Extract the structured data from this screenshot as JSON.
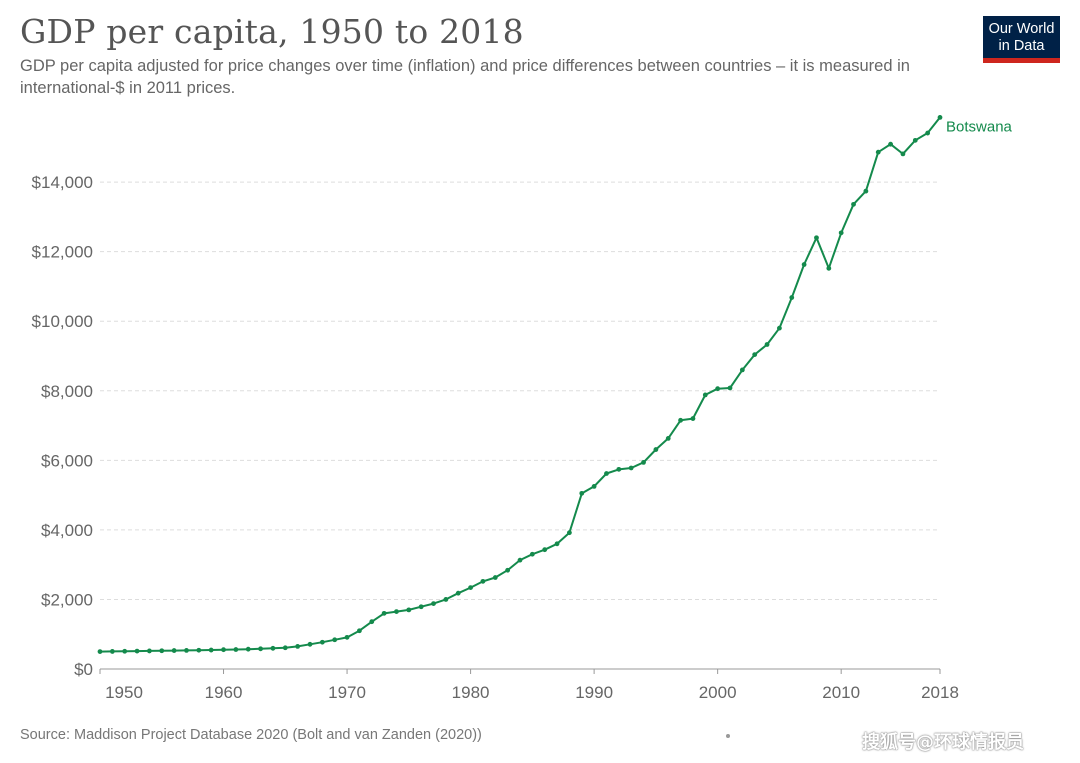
{
  "header": {
    "title": "GDP per capita, 1950 to 2018",
    "subtitle": "GDP per capita adjusted for price changes over time (inflation) and price differences between countries – it is measured in international-$ in 2011 prices."
  },
  "logo": {
    "line1": "Our World",
    "line2": "in Data",
    "bg_color": "#002147",
    "accent_color": "#ce261e"
  },
  "footer": {
    "source": "Source: Maddison Project Database 2020 (Bolt and van Zanden (2020))",
    "watermark": "搜狐号@环球情报员"
  },
  "chart_data": {
    "type": "line",
    "title": "GDP per capita, 1950 to 2018",
    "xlabel": "",
    "ylabel": "",
    "xlim": [
      1950,
      2018
    ],
    "ylim": [
      0,
      15900
    ],
    "grid": true,
    "x_ticks": [
      1950,
      1960,
      1970,
      1980,
      1990,
      2000,
      2010,
      2018
    ],
    "y_ticks": [
      0,
      2000,
      4000,
      6000,
      8000,
      10000,
      12000,
      14000
    ],
    "y_tick_labels": [
      "$0",
      "$2,000",
      "$4,000",
      "$6,000",
      "$8,000",
      "$10,000",
      "$12,000",
      "$14,000"
    ],
    "series": [
      {
        "name": "Botswana",
        "color": "#148a4c",
        "x": [
          1950,
          1951,
          1952,
          1953,
          1954,
          1955,
          1956,
          1957,
          1958,
          1959,
          1960,
          1961,
          1962,
          1963,
          1964,
          1965,
          1966,
          1967,
          1968,
          1969,
          1970,
          1971,
          1972,
          1973,
          1974,
          1975,
          1976,
          1977,
          1978,
          1979,
          1980,
          1981,
          1982,
          1983,
          1984,
          1985,
          1986,
          1987,
          1988,
          1989,
          1990,
          1991,
          1992,
          1993,
          1994,
          1995,
          1996,
          1997,
          1998,
          1999,
          2000,
          2001,
          2002,
          2003,
          2004,
          2005,
          2006,
          2007,
          2008,
          2009,
          2010,
          2011,
          2012,
          2013,
          2014,
          2015,
          2016,
          2017,
          2018
        ],
        "y": [
          500,
          505,
          510,
          515,
          520,
          525,
          530,
          535,
          540,
          545,
          555,
          560,
          570,
          580,
          595,
          610,
          650,
          710,
          770,
          840,
          910,
          1100,
          1360,
          1600,
          1650,
          1700,
          1790,
          1880,
          2000,
          2180,
          2340,
          2520,
          2630,
          2840,
          3130,
          3300,
          3430,
          3600,
          3920,
          5050,
          5250,
          5620,
          5740,
          5780,
          5940,
          6310,
          6630,
          7150,
          7200,
          7880,
          8060,
          8080,
          8600,
          9040,
          9330,
          9800,
          10680,
          11630,
          12400,
          11520,
          12540,
          13360,
          13740,
          14860,
          15090,
          14810,
          15200,
          15410,
          15860
        ]
      }
    ]
  }
}
